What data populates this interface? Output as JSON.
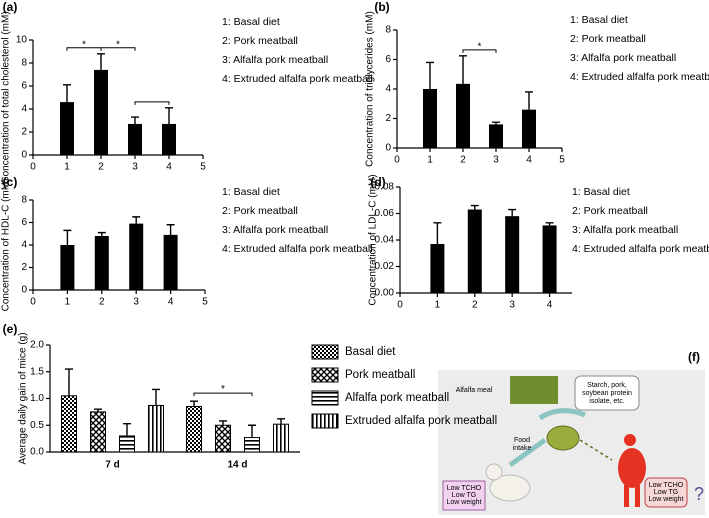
{
  "chart_data": [
    {
      "type": "bar",
      "panel_label": "(a)",
      "y_label": "Concentration of total cholesterol (mM)",
      "x": [
        1,
        2,
        3,
        4
      ],
      "values": [
        4.6,
        7.4,
        2.7,
        2.7
      ],
      "errors": [
        1.5,
        1.4,
        0.6,
        1.4
      ],
      "color": "#000000",
      "xlim": [
        0,
        5
      ],
      "xticks": [
        0,
        1,
        2,
        3,
        4,
        5
      ],
      "ylim": [
        0,
        10
      ],
      "yticks": [
        0,
        2,
        4,
        6,
        8,
        10
      ],
      "legend": [
        "1: Basal diet",
        "2: Pork meatball",
        "3: Alfalfa pork meatball",
        "4: Extruded alfalfa pork meatball"
      ],
      "significance": [
        {
          "pair": [
            1,
            2
          ],
          "label": "*"
        },
        {
          "pair": [
            2,
            3
          ],
          "label": "*"
        },
        {
          "pair": [
            3,
            4
          ]
        }
      ]
    },
    {
      "type": "bar",
      "panel_label": "(b)",
      "y_label": "Concentration of triglycerides (mM)",
      "x": [
        1,
        2,
        3,
        4
      ],
      "values": [
        4.0,
        4.35,
        1.6,
        2.6
      ],
      "errors": [
        1.8,
        1.9,
        0.15,
        1.2
      ],
      "color": "#000000",
      "xlim": [
        0,
        5
      ],
      "xticks": [
        0,
        1,
        2,
        3,
        4,
        5
      ],
      "ylim": [
        0,
        8
      ],
      "yticks": [
        0,
        2,
        4,
        6,
        8
      ],
      "legend": [
        "1: Basal diet",
        "2: Pork meatball",
        "3: Alfalfa pork meatball",
        "4: Extruded alfalfa pork meatball"
      ],
      "significance": [
        {
          "pair": [
            2,
            3
          ],
          "label": "*"
        }
      ]
    },
    {
      "type": "bar",
      "panel_label": "(c)",
      "y_label": "Concentration of HDL-C (mM)",
      "x": [
        1,
        2,
        3,
        4
      ],
      "values": [
        4.0,
        4.8,
        5.9,
        4.9
      ],
      "errors": [
        1.3,
        0.3,
        0.6,
        0.9
      ],
      "color": "#000000",
      "xlim": [
        0,
        5
      ],
      "xticks": [
        0,
        1,
        2,
        3,
        4,
        5
      ],
      "ylim": [
        0,
        8
      ],
      "yticks": [
        0,
        2,
        4,
        6,
        8
      ],
      "legend": [
        "1: Basal diet",
        "2: Pork meatball",
        "3: Alfalfa pork meatball",
        "4: Extruded alfalfa pork meatball"
      ]
    },
    {
      "type": "bar",
      "panel_label": "(d)",
      "y_label": "Concentration of LDL-C (mM)",
      "x": [
        1,
        2,
        3,
        4
      ],
      "values": [
        0.037,
        0.063,
        0.058,
        0.051
      ],
      "errors": [
        0.016,
        0.003,
        0.005,
        0.002
      ],
      "color": "#000000",
      "xlim": [
        0,
        4.6
      ],
      "xticks": [
        0,
        1,
        2,
        3,
        4
      ],
      "ylim": [
        0,
        0.08
      ],
      "yticks": [
        {
          "value": 0,
          "label": "0.00"
        },
        0.02,
        0.04,
        0.06,
        0.08
      ],
      "legend": [
        "1: Basal diet",
        "2: Pork meatball",
        "3: Alfalfa pork meatball",
        "4: Extruded alfalfa pork meatball"
      ]
    },
    {
      "type": "grouped_bar",
      "panel_label": "(e)",
      "y_label": "Average daily gain of mice (g)",
      "categories": [
        "7 d",
        "14 d"
      ],
      "series": [
        {
          "name": "Basal diet",
          "pattern": "checker",
          "color": "#000000",
          "values": [
            1.05,
            0.85
          ],
          "errors": [
            0.5,
            0.1
          ]
        },
        {
          "name": "Pork meatball",
          "pattern": "cross",
          "color": "#000000",
          "values": [
            0.75,
            0.5
          ],
          "errors": [
            0.05,
            0.08
          ]
        },
        {
          "name": "Alfalfa pork meatball",
          "pattern": "hline",
          "color": "#000000",
          "values": [
            0.3,
            0.27
          ],
          "errors": [
            0.23,
            0.23
          ]
        },
        {
          "name": "Extruded alfalfa pork meatball",
          "pattern": "vline",
          "color": "#000000",
          "values": [
            0.87,
            0.52
          ],
          "errors": [
            0.3,
            0.1
          ]
        }
      ],
      "ylim": [
        0,
        2
      ],
      "yticks": [
        {
          "value": 0,
          "label": "0.0"
        },
        0.5,
        {
          "value": 1,
          "label": "1.0"
        },
        1.5,
        {
          "value": 2,
          "label": "2.0"
        }
      ],
      "significance": [
        {
          "category": "14 d",
          "series": [
            "Basal diet",
            "Alfalfa pork meatball"
          ],
          "label": "*"
        }
      ]
    }
  ],
  "diagram": {
    "panel_label": "(f)",
    "alfalfa_meal": "Alfalfa meal",
    "ingredients": [
      "Starch, pork,",
      "soybean protein",
      "isolate, etc."
    ],
    "food_intake": [
      "Food",
      "intake"
    ],
    "left_outcome": [
      "Low TCHO",
      "Low TG",
      "Low weight"
    ],
    "right_outcome": [
      "Low TCHO",
      "Low TG",
      "Low weight"
    ],
    "question": "?"
  }
}
